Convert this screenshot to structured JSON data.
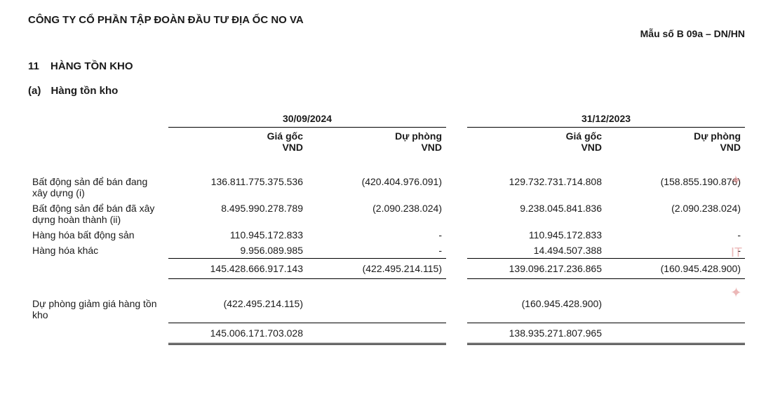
{
  "header": {
    "company_name": "CÔNG TY CỔ PHẦN TẬP ĐOÀN ĐẦU TƯ ĐỊA ỐC NO VA",
    "form_code": "Mẫu số B 09a – DN/HN"
  },
  "section": {
    "number": "11",
    "title": "HÀNG TỒN KHO"
  },
  "subsection": {
    "label": "(a)",
    "title": "Hàng tồn kho"
  },
  "table": {
    "period1": "30/09/2024",
    "period2": "31/12/2023",
    "col_cost": "Giá gốc",
    "col_prov": "Dự phòng",
    "unit": "VND",
    "rows": [
      {
        "label": "Bất động sản để bán đang xây dựng (i)",
        "p1_cost": "136.811.775.375.536",
        "p1_prov": "(420.404.976.091)",
        "p2_cost": "129.732.731.714.808",
        "p2_prov": "(158.855.190.876)"
      },
      {
        "label": "Bất động sản để bán đã xây dựng hoàn thành (ii)",
        "p1_cost": "8.495.990.278.789",
        "p1_prov": "(2.090.238.024)",
        "p2_cost": "9.238.045.841.836",
        "p2_prov": "(2.090.238.024)"
      },
      {
        "label": "Hàng hóa bất động sản",
        "p1_cost": "110.945.172.833",
        "p1_prov": "-",
        "p2_cost": "110.945.172.833",
        "p2_prov": "-"
      },
      {
        "label": "Hàng hóa khác",
        "p1_cost": "9.956.089.985",
        "p1_prov": "-",
        "p2_cost": "14.494.507.388",
        "p2_prov": "-"
      }
    ],
    "subtotal": {
      "p1_cost": "145.428.666.917.143",
      "p1_prov": "(422.495.214.115)",
      "p2_cost": "139.096.217.236.865",
      "p2_prov": "(160.945.428.900)"
    },
    "provision_row": {
      "label": "Dự phòng giảm giá hàng tồn kho",
      "p1_cost": "(422.495.214.115)",
      "p1_prov": "",
      "p2_cost": "(160.945.428.900)",
      "p2_prov": ""
    },
    "grand_total": {
      "p1_cost": "145.006.171.703.028",
      "p2_cost": "138.935.271.807.965"
    }
  }
}
